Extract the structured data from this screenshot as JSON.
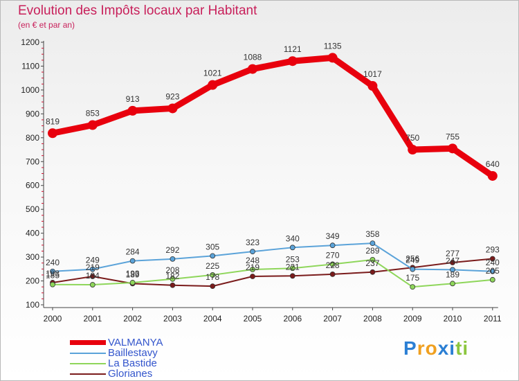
{
  "title": "Evolution des Impôts locaux par Habitant",
  "subtitle": "(en € et par an)",
  "brand": {
    "name": "Proxiti",
    "letters": [
      "P",
      "r",
      "o",
      "x",
      "i",
      "t",
      "i"
    ],
    "colors": [
      "#2b7fd4",
      "#f0a020",
      "#f0a020",
      "#2b7fd4",
      "#2b7fd4",
      "#8cc63f",
      "#8cc63f"
    ]
  },
  "chart_data": {
    "type": "line",
    "categories": [
      "2000",
      "2001",
      "2002",
      "2003",
      "2004",
      "2005",
      "2006",
      "2007",
      "2008",
      "2009",
      "2010",
      "2011"
    ],
    "ylim": [
      100,
      1200
    ],
    "yticks": [
      100,
      200,
      300,
      400,
      500,
      600,
      700,
      800,
      900,
      1000,
      1100,
      1200
    ],
    "xlabel": "",
    "ylabel": "",
    "legend_position": "bottom-left",
    "series": [
      {
        "name": "VALMANYA",
        "color": "#e8000d",
        "values": [
          819,
          853,
          913,
          923,
          1021,
          1088,
          1121,
          1135,
          1017,
          750,
          755,
          640
        ]
      },
      {
        "name": "Baillestavy",
        "color": "#5ba3d9",
        "values": [
          240,
          249,
          284,
          292,
          305,
          323,
          340,
          349,
          358,
          249,
          247,
          240
        ]
      },
      {
        "name": "La Bastide",
        "color": "#8ed65a",
        "values": [
          185,
          184,
          193,
          208,
          225,
          248,
          253,
          270,
          289,
          175,
          189,
          205
        ]
      },
      {
        "name": "Glorianes",
        "color": "#7a1b1b",
        "values": [
          193,
          219,
          189,
          182,
          178,
          219,
          221,
          228,
          237,
          256,
          277,
          293
        ]
      }
    ]
  }
}
